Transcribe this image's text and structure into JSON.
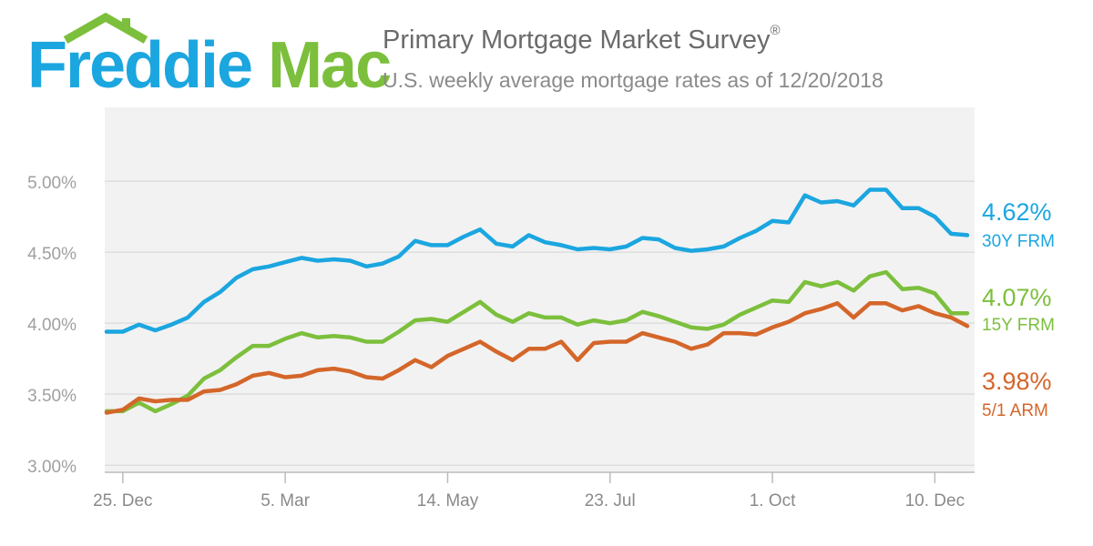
{
  "logo": {
    "part1": "Freddie",
    "part2": "Mac"
  },
  "header": {
    "title": "Primary Mortgage Market Survey",
    "title_mark": "®",
    "subtitle": "U.S. weekly average mortgage rates as of 12/20/2018"
  },
  "colors": {
    "frm30": "#1BA6E0",
    "frm15": "#7CBF3C",
    "arm51": "#D4662A",
    "grid": "#dddddd",
    "plot_bg": "#f2f2f2"
  },
  "chart_data": {
    "type": "line",
    "title": "Primary Mortgage Market Survey",
    "subtitle": "U.S. weekly average mortgage rates as of 12/20/2018",
    "ylim": [
      2.95,
      5.52
    ],
    "y_ticks": [
      3.0,
      3.5,
      4.0,
      4.5,
      5.0
    ],
    "y_tick_labels": [
      "3.00%",
      "3.50%",
      "4.00%",
      "4.50%",
      "5.00%"
    ],
    "x_tick_index": [
      1,
      11,
      21,
      31,
      41,
      51
    ],
    "x_tick_labels": [
      "25. Dec",
      "5. Mar",
      "14. May",
      "23. Jul",
      "1. Oct",
      "10. Dec"
    ],
    "grid": true,
    "legend": "right-end labels",
    "series": [
      {
        "name": "30Y FRM",
        "end_label": "4.62%",
        "values": [
          3.94,
          3.94,
          3.99,
          3.95,
          3.99,
          4.04,
          4.15,
          4.22,
          4.32,
          4.38,
          4.4,
          4.43,
          4.46,
          4.44,
          4.45,
          4.44,
          4.4,
          4.42,
          4.47,
          4.58,
          4.55,
          4.55,
          4.61,
          4.66,
          4.56,
          4.54,
          4.62,
          4.57,
          4.55,
          4.52,
          4.53,
          4.52,
          4.54,
          4.6,
          4.59,
          4.53,
          4.51,
          4.52,
          4.54,
          4.6,
          4.65,
          4.72,
          4.71,
          4.9,
          4.85,
          4.86,
          4.83,
          4.94,
          4.94,
          4.81,
          4.81,
          4.75,
          4.63,
          4.62
        ]
      },
      {
        "name": "15Y FRM",
        "end_label": "4.07%",
        "values": [
          3.38,
          3.38,
          3.44,
          3.38,
          3.43,
          3.49,
          3.61,
          3.67,
          3.76,
          3.84,
          3.84,
          3.89,
          3.93,
          3.9,
          3.91,
          3.9,
          3.87,
          3.87,
          3.94,
          4.02,
          4.03,
          4.01,
          4.08,
          4.15,
          4.06,
          4.01,
          4.07,
          4.04,
          4.04,
          3.99,
          4.02,
          4.0,
          4.02,
          4.08,
          4.05,
          4.01,
          3.97,
          3.96,
          3.99,
          4.06,
          4.11,
          4.16,
          4.15,
          4.29,
          4.26,
          4.29,
          4.23,
          4.33,
          4.36,
          4.24,
          4.25,
          4.21,
          4.07,
          4.07
        ]
      },
      {
        "name": "5/1 ARM",
        "end_label": "3.98%",
        "values": [
          3.37,
          3.39,
          3.47,
          3.45,
          3.46,
          3.46,
          3.52,
          3.53,
          3.57,
          3.63,
          3.65,
          3.62,
          3.63,
          3.67,
          3.68,
          3.66,
          3.62,
          3.61,
          3.67,
          3.74,
          3.69,
          3.77,
          3.82,
          3.87,
          3.8,
          3.74,
          3.82,
          3.82,
          3.87,
          3.74,
          3.86,
          3.87,
          3.87,
          3.93,
          3.9,
          3.87,
          3.82,
          3.85,
          3.93,
          3.93,
          3.92,
          3.97,
          4.01,
          4.07,
          4.1,
          4.14,
          4.04,
          4.14,
          4.14,
          4.09,
          4.12,
          4.07,
          4.04,
          3.98
        ]
      }
    ]
  }
}
